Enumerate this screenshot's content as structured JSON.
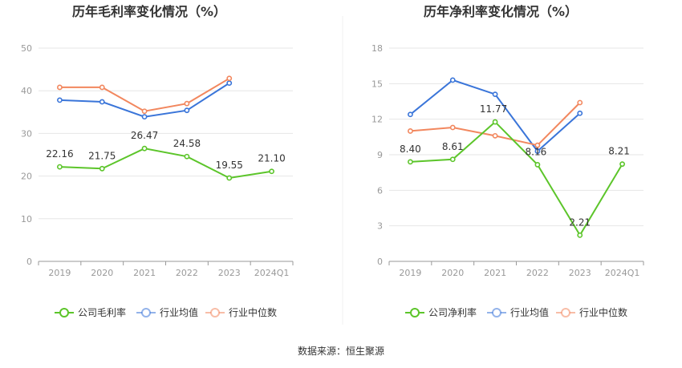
{
  "source_text": "数据来源：恒生聚源",
  "colors": {
    "company": "#5cc52a",
    "industry_avg": "#3a75d9",
    "industry_median": "#f2875e",
    "grid": "#e6e6e6",
    "axis": "#999999"
  },
  "chart_data": [
    {
      "type": "line",
      "title": "历年毛利率变化情况（%）",
      "xlabel": "",
      "ylabel": "",
      "categories": [
        "2019",
        "2020",
        "2021",
        "2022",
        "2023",
        "2024Q1"
      ],
      "ylim": [
        0,
        50
      ],
      "yticks": [
        0,
        10,
        20,
        30,
        40,
        50
      ],
      "grid": true,
      "legend_position": "bottom",
      "series": [
        {
          "name": "公司毛利率",
          "color": "#5cc52a",
          "labeled": true,
          "values": [
            22.16,
            21.75,
            26.47,
            24.58,
            19.55,
            21.1
          ],
          "labels": [
            "22.16",
            "21.75",
            "26.47",
            "24.58",
            "19.55",
            "21.10"
          ]
        },
        {
          "name": "行业均值",
          "color": "#3a75d9",
          "labeled": false,
          "values": [
            37.8,
            37.4,
            33.9,
            35.4,
            41.8,
            null
          ]
        },
        {
          "name": "行业中位数",
          "color": "#f2875e",
          "labeled": false,
          "values": [
            40.8,
            40.8,
            35.2,
            37.0,
            42.9,
            null
          ]
        }
      ]
    },
    {
      "type": "line",
      "title": "历年净利率变化情况（%）",
      "xlabel": "",
      "ylabel": "",
      "categories": [
        "2019",
        "2020",
        "2021",
        "2022",
        "2023",
        "2024Q1"
      ],
      "ylim": [
        0,
        18
      ],
      "yticks": [
        0,
        3,
        6,
        9,
        12,
        15,
        18
      ],
      "grid": true,
      "legend_position": "bottom",
      "series": [
        {
          "name": "公司净利率",
          "color": "#5cc52a",
          "labeled": true,
          "values": [
            8.4,
            8.61,
            11.77,
            8.16,
            2.21,
            8.21
          ],
          "labels": [
            "8.40",
            "8.61",
            "11.77",
            "8.16",
            "2.21",
            "8.21"
          ]
        },
        {
          "name": "行业均值",
          "color": "#3a75d9",
          "labeled": false,
          "values": [
            12.4,
            15.3,
            14.1,
            9.3,
            12.5,
            null
          ]
        },
        {
          "name": "行业中位数",
          "color": "#f2875e",
          "labeled": false,
          "values": [
            11.0,
            11.3,
            10.6,
            9.8,
            13.4,
            null
          ]
        }
      ]
    }
  ]
}
